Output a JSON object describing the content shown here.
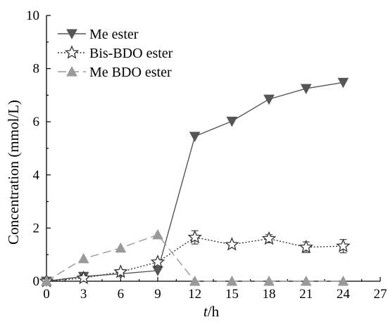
{
  "chart_data": {
    "type": "line",
    "xlabel_italic": "t",
    "xlabel_unit": "/h",
    "ylabel": "Concentration (mmol/L)",
    "xlim": [
      0,
      27
    ],
    "ylim": [
      0,
      10
    ],
    "xticks": [
      "0",
      "3",
      "6",
      "9",
      "12",
      "15",
      "18",
      "21",
      "24",
      "27"
    ],
    "yticks": [
      "0",
      "2",
      "4",
      "6",
      "8",
      "10"
    ],
    "grid": false,
    "legend_position": "top-left",
    "x": [
      0,
      3,
      6,
      9,
      12,
      15,
      18,
      21,
      24
    ],
    "series": [
      {
        "name": "Me ester",
        "marker": "triangle-down",
        "line": "solid",
        "color": "#555555",
        "values": [
          0,
          0.18,
          0.28,
          0.4,
          5.45,
          6.02,
          6.85,
          7.25,
          7.48
        ]
      },
      {
        "name": "Bis-BDO ester",
        "marker": "star-open",
        "line": "dotted",
        "color": "#333333",
        "values": [
          0,
          0.12,
          0.35,
          0.72,
          1.65,
          1.38,
          1.6,
          1.28,
          1.32
        ],
        "error": [
          0,
          0,
          0,
          0,
          0.25,
          0,
          0.15,
          0.2,
          0.25
        ]
      },
      {
        "name": "Me BDO ester",
        "marker": "triangle-up",
        "line": "dashed",
        "color": "#9a9a9a",
        "x": [
          0,
          3,
          6,
          9,
          12,
          15,
          18,
          21,
          24
        ],
        "values": [
          0,
          0.85,
          1.25,
          1.75,
          0.0,
          0.0,
          0.0,
          0.0,
          0.0
        ]
      }
    ]
  }
}
